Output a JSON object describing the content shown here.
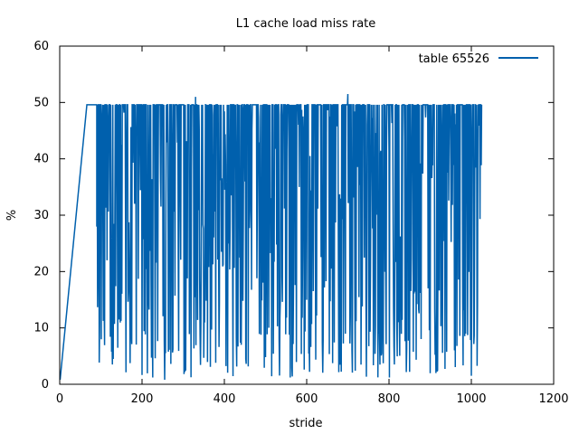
{
  "chart_data": {
    "type": "line",
    "title": "L1 cache load miss rate",
    "xlabel": "stride",
    "ylabel": "%",
    "xlim": [
      0,
      1200
    ],
    "ylim": [
      0,
      60
    ],
    "x_ticks": [
      0,
      200,
      400,
      600,
      800,
      1000,
      1200
    ],
    "y_ticks": [
      0,
      10,
      20,
      30,
      40,
      50,
      60
    ],
    "x_tick_labels": [
      "0",
      "200",
      "400",
      "600",
      "800",
      "1000",
      "1200"
    ],
    "y_tick_labels": [
      "0",
      "10",
      "20",
      "30",
      "40",
      "50",
      "60"
    ],
    "grid": false,
    "legend_position": "top-right",
    "series": [
      {
        "name": "table 65526",
        "color": "#0060ad",
        "ramp": {
          "x": [
            1,
            66
          ],
          "y": [
            0.8,
            49.6
          ]
        },
        "plateau": {
          "x": [
            66,
            90
          ],
          "y": 49.6
        },
        "oscillation": {
          "x": [
            90,
            1025
          ],
          "high": 49.6,
          "low_range": [
            1,
            49
          ]
        },
        "notable_points": [
          [
            105,
            28
          ],
          [
            115,
            22
          ],
          [
            130,
            4.5
          ],
          [
            255,
            0.8
          ],
          [
            330,
            51
          ],
          [
            700,
            51.5
          ],
          [
            1000,
            1.5
          ]
        ]
      }
    ]
  }
}
